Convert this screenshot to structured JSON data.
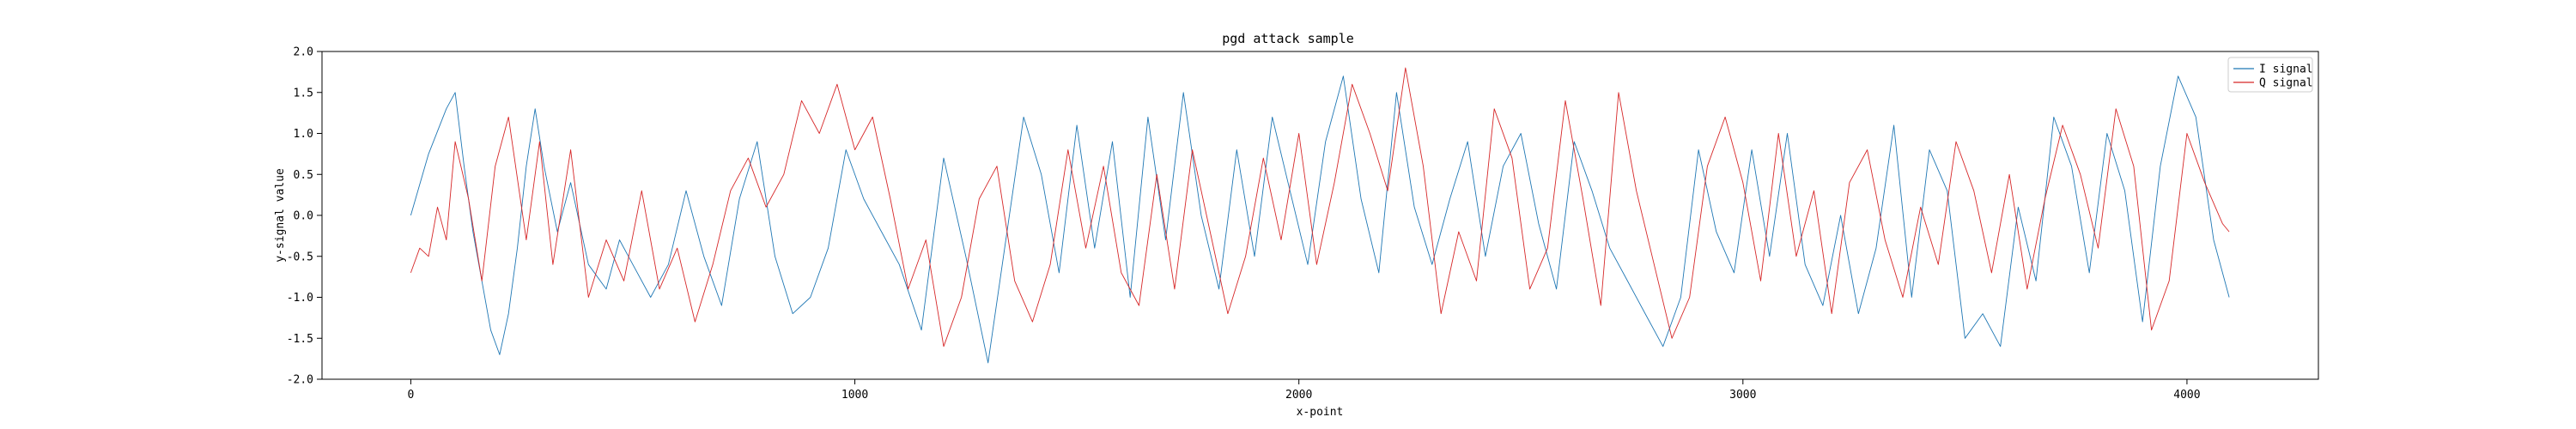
{
  "chart_data": {
    "type": "line",
    "title": "pgd attack sample",
    "xlabel": "x-point",
    "ylabel": "y-signal value",
    "xlim": [
      -200,
      4296
    ],
    "ylim": [
      -2.0,
      2.0
    ],
    "xticks": [
      0,
      1000,
      2000,
      3000,
      4000
    ],
    "xtick_labels": [
      "0",
      "1000",
      "2000",
      "3000",
      "4000"
    ],
    "yticks": [
      2.0,
      1.5,
      1.0,
      0.5,
      0.0,
      -0.5,
      -1.0,
      -1.5,
      -2.0
    ],
    "ytick_labels": [
      "2.0",
      "1.5",
      "1.0",
      "0.5",
      "0.0",
      "-0.5",
      "-1.0",
      "-1.5",
      "-2.0"
    ],
    "legend_position": "top-right",
    "grid": false,
    "series": [
      {
        "name": "I signal",
        "color": "#1f77b4",
        "x": [
          0,
          40,
          80,
          100,
          120,
          140,
          160,
          180,
          200,
          220,
          240,
          260,
          280,
          300,
          330,
          360,
          400,
          440,
          470,
          500,
          540,
          580,
          620,
          660,
          700,
          740,
          780,
          820,
          860,
          900,
          940,
          980,
          1020,
          1060,
          1100,
          1150,
          1200,
          1250,
          1300,
          1340,
          1380,
          1420,
          1460,
          1500,
          1540,
          1580,
          1620,
          1660,
          1700,
          1740,
          1780,
          1820,
          1860,
          1900,
          1940,
          1980,
          2020,
          2060,
          2100,
          2140,
          2180,
          2220,
          2260,
          2300,
          2340,
          2380,
          2420,
          2460,
          2500,
          2540,
          2580,
          2620,
          2660,
          2700,
          2740,
          2780,
          2820,
          2860,
          2900,
          2940,
          2980,
          3020,
          3060,
          3100,
          3140,
          3180,
          3220,
          3260,
          3300,
          3340,
          3380,
          3420,
          3460,
          3500,
          3540,
          3580,
          3620,
          3660,
          3700,
          3740,
          3780,
          3820,
          3860,
          3900,
          3940,
          3980,
          4020,
          4060,
          4095
        ],
        "y": [
          0.0,
          0.75,
          1.3,
          1.5,
          0.6,
          -0.2,
          -0.8,
          -1.4,
          -1.7,
          -1.2,
          -0.4,
          0.6,
          1.3,
          0.6,
          -0.2,
          0.4,
          -0.6,
          -0.9,
          -0.3,
          -0.6,
          -1.0,
          -0.6,
          0.3,
          -0.5,
          -1.1,
          0.2,
          0.9,
          -0.5,
          -1.2,
          -1.0,
          -0.4,
          0.8,
          0.2,
          -0.2,
          -0.6,
          -1.4,
          0.7,
          -0.5,
          -1.8,
          -0.3,
          1.2,
          0.5,
          -0.7,
          1.1,
          -0.4,
          0.9,
          -1.0,
          1.2,
          -0.3,
          1.5,
          0.0,
          -0.9,
          0.8,
          -0.5,
          1.2,
          0.3,
          -0.6,
          0.9,
          1.7,
          0.2,
          -0.7,
          1.5,
          0.1,
          -0.6,
          0.2,
          0.9,
          -0.5,
          0.6,
          1.0,
          -0.1,
          -0.9,
          0.9,
          0.3,
          -0.4,
          -0.8,
          -1.2,
          -1.6,
          -1.0,
          0.8,
          -0.2,
          -0.7,
          0.8,
          -0.5,
          1.0,
          -0.6,
          -1.1,
          0.0,
          -1.2,
          -0.4,
          1.1,
          -1.0,
          0.8,
          0.3,
          -1.5,
          -1.2,
          -1.6,
          0.1,
          -0.8,
          1.2,
          0.6,
          -0.7,
          1.0,
          0.3,
          -1.3,
          0.6,
          1.7,
          1.2,
          -0.3,
          -1.0
        ],
        "line_width": 0.9
      },
      {
        "name": "Q signal",
        "color": "#d62728",
        "x": [
          0,
          20,
          40,
          60,
          80,
          100,
          130,
          160,
          190,
          220,
          260,
          290,
          320,
          360,
          400,
          440,
          480,
          520,
          560,
          600,
          640,
          680,
          720,
          760,
          800,
          840,
          880,
          920,
          960,
          1000,
          1040,
          1080,
          1120,
          1160,
          1200,
          1240,
          1280,
          1320,
          1360,
          1400,
          1440,
          1480,
          1520,
          1560,
          1600,
          1640,
          1680,
          1720,
          1760,
          1800,
          1840,
          1880,
          1920,
          1960,
          2000,
          2040,
          2080,
          2120,
          2160,
          2200,
          2240,
          2280,
          2320,
          2360,
          2400,
          2440,
          2480,
          2520,
          2560,
          2600,
          2640,
          2680,
          2720,
          2760,
          2800,
          2840,
          2880,
          2920,
          2960,
          3000,
          3040,
          3080,
          3120,
          3160,
          3200,
          3240,
          3280,
          3320,
          3360,
          3400,
          3440,
          3480,
          3520,
          3560,
          3600,
          3640,
          3680,
          3720,
          3760,
          3800,
          3840,
          3880,
          3920,
          3960,
          4000,
          4040,
          4080,
          4095
        ],
        "y": [
          -0.7,
          -0.4,
          -0.5,
          0.1,
          -0.3,
          0.9,
          0.2,
          -0.8,
          0.6,
          1.2,
          -0.3,
          0.9,
          -0.6,
          0.8,
          -1.0,
          -0.3,
          -0.8,
          0.3,
          -0.9,
          -0.4,
          -1.3,
          -0.6,
          0.3,
          0.7,
          0.1,
          0.5,
          1.4,
          1.0,
          1.6,
          0.8,
          1.2,
          0.2,
          -0.9,
          -0.3,
          -1.6,
          -1.0,
          0.2,
          0.6,
          -0.8,
          -1.3,
          -0.6,
          0.8,
          -0.4,
          0.6,
          -0.7,
          -1.1,
          0.5,
          -0.9,
          0.8,
          -0.2,
          -1.2,
          -0.5,
          0.7,
          -0.3,
          1.0,
          -0.6,
          0.4,
          1.6,
          1.0,
          0.3,
          1.8,
          0.6,
          -1.2,
          -0.2,
          -0.8,
          1.3,
          0.7,
          -0.9,
          -0.4,
          1.4,
          0.2,
          -1.1,
          1.5,
          0.3,
          -0.6,
          -1.5,
          -1.0,
          0.6,
          1.2,
          0.4,
          -0.8,
          1.0,
          -0.5,
          0.3,
          -1.2,
          0.4,
          0.8,
          -0.3,
          -1.0,
          0.1,
          -0.6,
          0.9,
          0.3,
          -0.7,
          0.5,
          -0.9,
          0.2,
          1.1,
          0.5,
          -0.4,
          1.3,
          0.6,
          -1.4,
          -0.8,
          1.0,
          0.4,
          -0.1,
          -0.2
        ],
        "line_width": 0.9
      }
    ]
  }
}
